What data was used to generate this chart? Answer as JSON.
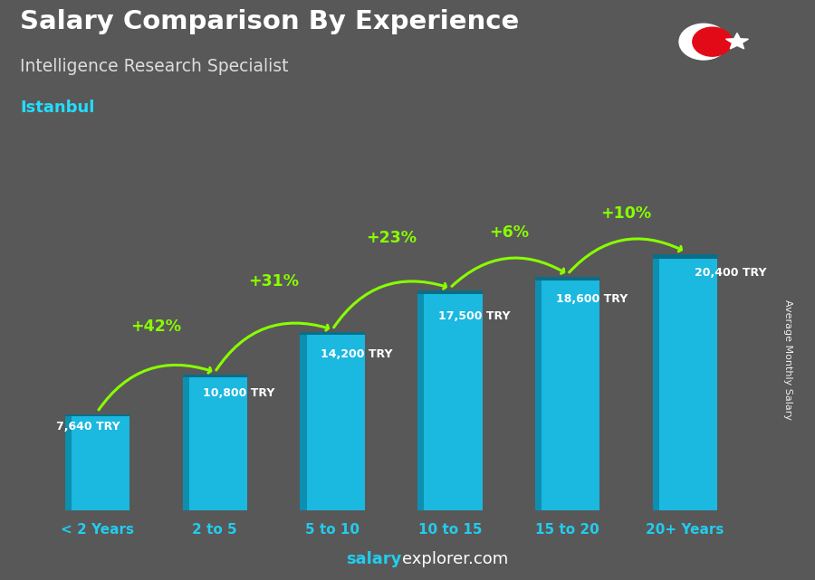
{
  "title": "Salary Comparison By Experience",
  "subtitle": "Intelligence Research Specialist",
  "city": "Istanbul",
  "categories": [
    "< 2 Years",
    "2 to 5",
    "5 to 10",
    "10 to 15",
    "15 to 20",
    "20+ Years"
  ],
  "values": [
    7640,
    10800,
    14200,
    17500,
    18600,
    20400
  ],
  "value_labels": [
    "7,640 TRY",
    "10,800 TRY",
    "14,200 TRY",
    "17,500 TRY",
    "18,600 TRY",
    "20,400 TRY"
  ],
  "pct_changes": [
    "+42%",
    "+31%",
    "+23%",
    "+6%",
    "+10%"
  ],
  "bar_color_main": "#1BB8E0",
  "bar_color_left": "#0d8fb0",
  "bar_color_top": "#0a6e88",
  "background_color": "#585858",
  "title_color": "#ffffff",
  "subtitle_color": "#dddddd",
  "city_color": "#22DDFF",
  "label_color": "#ffffff",
  "pct_color": "#88FF00",
  "tick_color": "#22CCEE",
  "flag_red": "#E30A17",
  "ylabel": "Average Monthly Salary",
  "ylim_max": 24000,
  "watermark_salary_color": "#22CCEE",
  "watermark_explorer_color": "#ffffff"
}
